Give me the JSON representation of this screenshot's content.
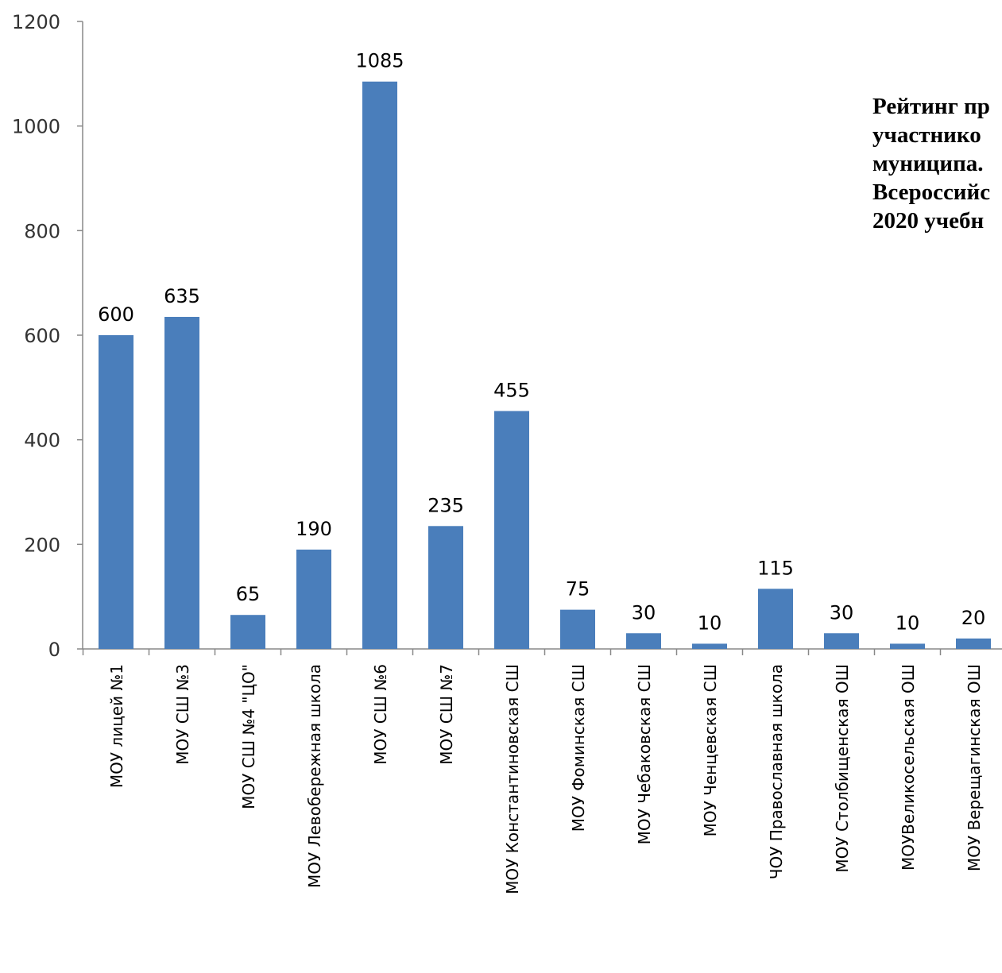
{
  "chart_data": {
    "type": "bar",
    "title_lines": [
      "Рейтинг пр",
      "участнико",
      "муниципа.",
      "Всероссийс",
      "2020 учебн"
    ],
    "categories": [
      "МОУ лицей №1",
      "МОУ СШ №3",
      "МОУ СШ №4 \"ЦО\"",
      "МОУ Левобережная  школа",
      "МОУ СШ №6",
      "МОУ СШ №7",
      "МОУ Константиновская СШ",
      "МОУ Фоминская СШ",
      "МОУ Чебаковская СШ",
      "МОУ Ченцевская СШ",
      "ЧОУ Православная школа",
      "МОУ Столбищенская ОШ",
      "МОУВеликосельская ОШ",
      "МОУ Верещагинская ОШ"
    ],
    "values": [
      600,
      635,
      65,
      190,
      1085,
      235,
      455,
      75,
      30,
      10,
      115,
      30,
      10,
      20
    ],
    "data_labels": [
      "600",
      "635",
      "65",
      "190",
      "1085",
      "235",
      "455",
      "75",
      "30",
      "10",
      "115",
      "30",
      "10",
      "20"
    ],
    "y_ticks": [
      "0",
      "200",
      "400",
      "600",
      "800",
      "1000",
      "1200"
    ],
    "ylim": [
      0,
      1200
    ],
    "xlabel": "",
    "ylabel": "",
    "grid": false,
    "legend": "none",
    "colors": {
      "bar": "#4a7ebb",
      "axis": "#888888",
      "label": "#000000",
      "tick_label": "#333333"
    }
  }
}
